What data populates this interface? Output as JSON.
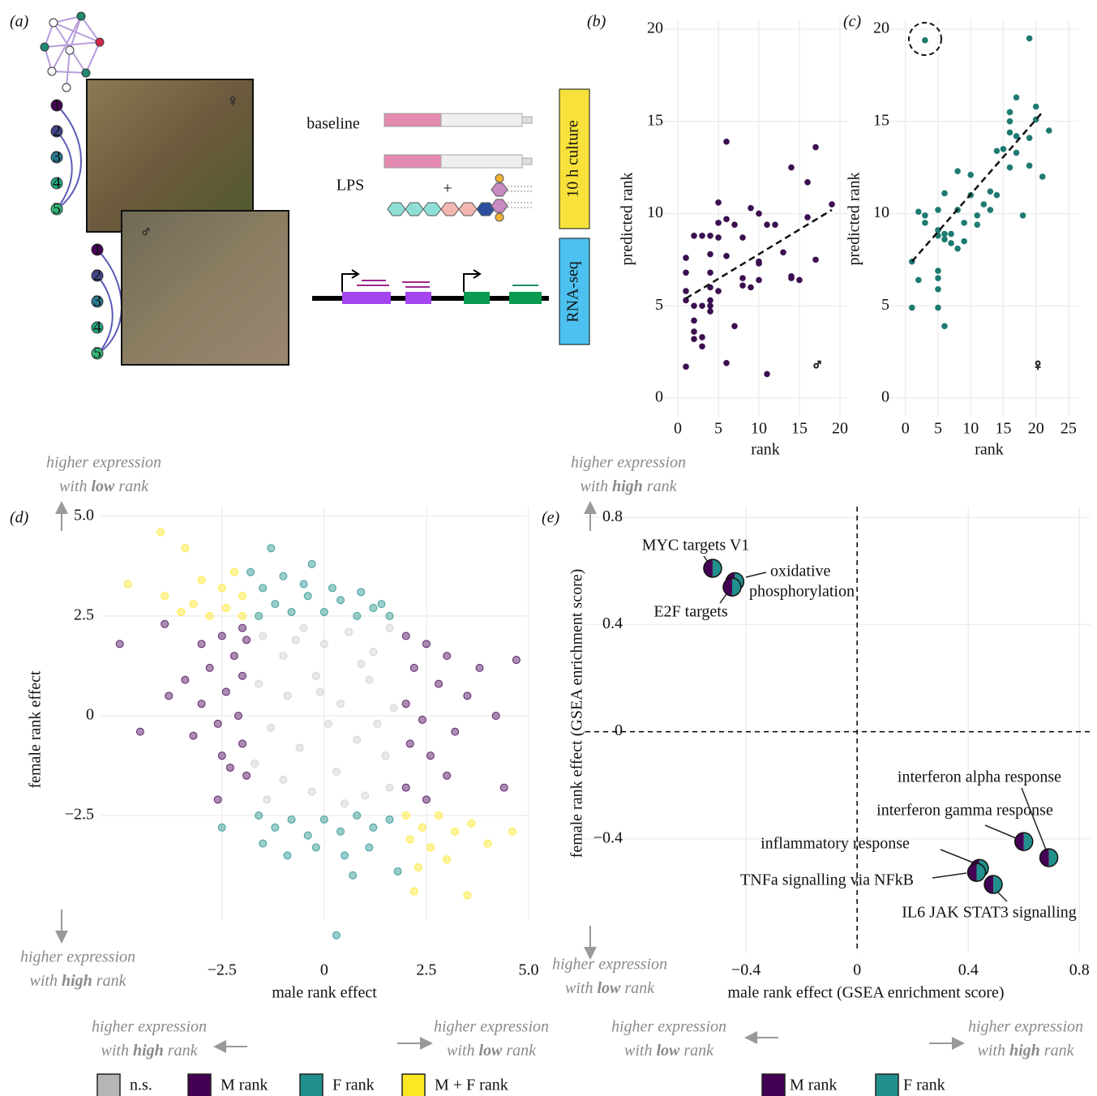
{
  "panel_a": {
    "panel": "(a)",
    "baseline": "baseline",
    "lps": "LPS",
    "plus": "+",
    "culture": "10 h culture",
    "rnaseq": "RNA-seq",
    "female_symbol": "♀",
    "male_symbol": "♂",
    "ranks": [
      1,
      2,
      3,
      4,
      5
    ]
  },
  "chart_data": [
    {
      "type": "scatter",
      "panel": "(b)",
      "xlabel": "rank",
      "ylabel": "predicted rank",
      "sex_symbol": "♂",
      "color": "#3b0f4f",
      "grid": true,
      "x": [
        1,
        1,
        1,
        1,
        1,
        2,
        2,
        2,
        2,
        2,
        3,
        3,
        3,
        3,
        4,
        4,
        4,
        4,
        4,
        4,
        4,
        5,
        5,
        5,
        5,
        6,
        6,
        6,
        6,
        7,
        7,
        8,
        8,
        8,
        9,
        9,
        10,
        10,
        10,
        10,
        11,
        11,
        12,
        13,
        14,
        14,
        14,
        15,
        16,
        16,
        17,
        17,
        19
      ],
      "y": [
        1.7,
        5.3,
        5.8,
        6.8,
        7.6,
        3.6,
        3.2,
        4.2,
        5,
        8.8,
        2.8,
        3.3,
        5,
        8.8,
        4.7,
        5,
        5.3,
        6,
        6.8,
        8.8,
        7.8,
        9.5,
        10.6,
        8.7,
        5.8,
        13.9,
        1.9,
        7.7,
        9.7,
        9.4,
        3.9,
        6.5,
        6.1,
        8.7,
        10.3,
        6,
        7.3,
        7.4,
        6.4,
        10,
        9.4,
        1.3,
        9.4,
        7.9,
        12.5,
        6.6,
        6.5,
        6.4,
        11.7,
        9.8,
        13.6,
        7.5,
        10.5
      ],
      "fit": {
        "x": [
          1,
          19
        ],
        "y": [
          5.4,
          10.2
        ]
      },
      "xlim": [
        -2.4,
        21
      ],
      "ylim": [
        -1,
        20.5
      ],
      "xticks": [
        0,
        5,
        10,
        15,
        20
      ],
      "yticks": [
        0,
        5,
        10,
        15,
        20
      ]
    },
    {
      "type": "scatter",
      "panel": "(c)",
      "xlabel": "rank",
      "ylabel": "predicted rank",
      "sex_symbol": "♀",
      "color": "#1f7a72",
      "grid": true,
      "x": [
        1,
        1,
        2,
        2,
        3,
        3,
        3,
        5,
        5,
        5,
        5,
        5,
        5,
        5,
        6,
        6,
        6,
        6,
        7,
        7,
        8,
        8,
        8,
        9,
        9,
        10,
        10,
        11,
        11,
        12,
        13,
        13,
        14,
        14,
        15,
        16,
        16,
        16,
        16,
        17,
        17,
        17,
        18,
        19,
        19,
        19,
        20,
        20,
        21,
        22
      ],
      "y": [
        4.9,
        7.4,
        10.1,
        6.4,
        9.9,
        19.4,
        9.5,
        10.2,
        9.1,
        8.8,
        6.9,
        6.5,
        5.9,
        4.9,
        3.9,
        11.1,
        8.6,
        8.9,
        8.4,
        8.9,
        12.3,
        10.2,
        8.1,
        9.5,
        8.5,
        12.1,
        11,
        9.9,
        9.4,
        10.5,
        11.2,
        10.2,
        11,
        13.4,
        13.5,
        12.5,
        15.5,
        15,
        14.4,
        16.3,
        14.2,
        13.3,
        9.9,
        19.5,
        14.1,
        12.6,
        15.1,
        15.8,
        12,
        14.5
      ],
      "fit": {
        "x": [
          1,
          21
        ],
        "y": [
          7.4,
          15.5
        ]
      },
      "xlim": [
        -2.7,
        26.5
      ],
      "ylim": [
        -1,
        20.5
      ],
      "xticks": [
        0,
        5,
        10,
        15,
        20,
        25
      ],
      "yticks": [
        0,
        5,
        10,
        15,
        20
      ]
    },
    {
      "type": "scatter",
      "panel": "(d)",
      "xlabel": "male rank effect",
      "ylabel": "female rank effect",
      "grid": true,
      "xlim": [
        -5.45,
        5.0
      ],
      "ylim": [
        -5.12,
        5.24
      ],
      "xticks": [
        {
          "value": -2.5,
          "label": "−2.5"
        },
        0,
        2.5,
        {
          "value": 5,
          "label": "5.0"
        }
      ],
      "yticks": [
        {
          "value": -2.5,
          "label": "−2.5"
        },
        0,
        2.5,
        {
          "value": 5,
          "label": "5.0"
        }
      ],
      "annotations": [
        {
          "line1": "higher expression",
          "line2": [
            "with ",
            "low",
            " rank"
          ]
        },
        {
          "line1": "higher expression",
          "line2": [
            "with ",
            "high",
            " rank"
          ]
        },
        {
          "line1": "higher expression",
          "line2": [
            "with ",
            "high",
            " rank"
          ]
        },
        {
          "line1": "higher expression",
          "line2": [
            "with ",
            "low",
            " rank"
          ]
        }
      ],
      "series": [
        {
          "name": "n.s.",
          "color": "#b5b5b5",
          "x": [
            -1.5,
            -1,
            -0.5,
            0,
            0.6,
            1.2,
            1.6,
            -1.6,
            -0.9,
            -0.2,
            0.4,
            1.1,
            1.7,
            -1.3,
            -0.6,
            0.1,
            0.8,
            1.5,
            -1.7,
            -1,
            -0.3,
            0.3,
            1,
            1.6,
            -1.4,
            0.5,
            -0.1,
            0.9,
            -0.7,
            1.3
          ],
          "y": [
            2,
            1.5,
            2.2,
            1.8,
            2.1,
            1.6,
            2.2,
            0.8,
            0.5,
            1,
            0.3,
            0.9,
            0.2,
            -0.3,
            -0.8,
            -0.2,
            -0.6,
            -1,
            -1.2,
            -1.6,
            -1.9,
            -1.4,
            -2,
            -1.8,
            -2.1,
            -2.2,
            0.6,
            1.3,
            1.9,
            -0.2
          ]
        },
        {
          "name": "M rank",
          "color": "#440154",
          "x": [
            -2,
            -2.5,
            -3,
            -2.2,
            -2.8,
            -3.4,
            -2,
            -2.4,
            -3,
            -3.8,
            -2.1,
            -2.6,
            -3.2,
            -2,
            -2.5,
            -1.9,
            -2.3,
            -2.6,
            -4.5,
            -5,
            -3.9,
            -1.9,
            2,
            2.5,
            3,
            2.2,
            2.8,
            3.5,
            2,
            2.4,
            3.2,
            4.2,
            2.1,
            2.6,
            3,
            2,
            2.5,
            4.4,
            3.8,
            4.7
          ],
          "y": [
            2.2,
            2,
            1.8,
            1.5,
            1.2,
            0.9,
            1,
            0.6,
            0.3,
            0.5,
            0,
            -0.2,
            -0.5,
            -0.7,
            -1,
            -1.5,
            -1.3,
            -2.1,
            -0.4,
            1.8,
            2.3,
            1.9,
            2,
            1.8,
            1.5,
            1.2,
            0.8,
            0.5,
            0.3,
            -0.1,
            -0.4,
            0,
            -0.7,
            -1,
            -1.5,
            -1.8,
            -2.1,
            -1.8,
            1.2,
            1.4
          ]
        },
        {
          "name": "F rank",
          "color": "#21908c",
          "x": [
            -1.6,
            -1.2,
            -0.8,
            -0.4,
            0,
            0.4,
            0.8,
            1.2,
            1.6,
            -1.5,
            -1,
            -0.5,
            0.2,
            0.9,
            -1.8,
            -1.3,
            -0.3,
            1.4,
            -1.6,
            -1.2,
            -0.8,
            -0.4,
            0,
            0.4,
            0.8,
            1.2,
            1.6,
            -1.5,
            -0.9,
            -0.2,
            0.5,
            1.1,
            1.8,
            -2.5,
            0.7,
            0.3
          ],
          "y": [
            2.5,
            2.8,
            2.6,
            3,
            2.6,
            2.9,
            2.5,
            2.7,
            2.5,
            3.2,
            3.5,
            3.3,
            3.2,
            3.1,
            3.6,
            4.2,
            3.8,
            2.8,
            -2.5,
            -2.8,
            -2.6,
            -3,
            -2.6,
            -2.9,
            -2.5,
            -2.8,
            -2.6,
            -3.2,
            -3.5,
            -3.3,
            -3.5,
            -3.3,
            -3.9,
            -2.8,
            -4,
            -5.5
          ]
        },
        {
          "name": "M + F rank",
          "color": "#fde725",
          "x": [
            -2,
            -2.4,
            -2.8,
            -3.2,
            -2,
            -2.5,
            -3,
            -3.5,
            -2.2,
            -3.9,
            -4.8,
            -4,
            -3.4,
            2,
            2.4,
            2.8,
            3.2,
            2.1,
            2.6,
            3,
            3.6,
            2.3,
            4,
            4.6,
            2.2,
            3.5
          ],
          "y": [
            2.5,
            2.7,
            2.5,
            2.8,
            3,
            3.2,
            3.4,
            2.6,
            3.6,
            3,
            3.3,
            4.6,
            4.2,
            -2.5,
            -2.8,
            -2.5,
            -2.9,
            -3.1,
            -3.3,
            -3.6,
            -2.7,
            -3.8,
            -3.2,
            -2.9,
            -4.4,
            -4.5
          ]
        }
      ]
    },
    {
      "type": "scatter",
      "panel": "(e)",
      "xlabel": "male rank effect (GSEA enrichment score)",
      "ylabel": "female rank effect (GSEA enrichment score)",
      "grid": true,
      "xlim": [
        -0.978,
        0.84
      ],
      "ylim": [
        -0.824,
        0.84
      ],
      "xticks": [
        {
          "value": -0.4,
          "label": "−0.4"
        },
        0,
        0.4,
        0.8
      ],
      "yticks": [
        {
          "value": -0.4,
          "label": "−0.4"
        },
        0,
        0.4,
        0.8
      ],
      "reference_lines": {
        "x": 0,
        "y": 0
      },
      "annotations": [
        {
          "line1": "higher expression",
          "line2": [
            "with ",
            "high",
            " rank"
          ]
        },
        {
          "line1": "higher expression",
          "line2": [
            "with ",
            "low",
            " rank"
          ]
        },
        {
          "line1": "higher expression",
          "line2": [
            "with ",
            "low",
            " rank"
          ]
        },
        {
          "line1": "higher expression",
          "line2": [
            "with ",
            "high",
            " rank"
          ]
        }
      ],
      "legend": [
        {
          "name": "M rank",
          "color": "#440154"
        },
        {
          "name": "F rank",
          "color": "#21908c"
        }
      ],
      "points": [
        {
          "label": [
            "MYC targets V1"
          ],
          "x": -0.52,
          "y": 0.61
        },
        {
          "label": [
            "oxidative",
            "phosphorylation"
          ],
          "x": -0.44,
          "y": 0.56
        },
        {
          "label": [
            "E2F targets"
          ],
          "x": -0.45,
          "y": 0.54
        },
        {
          "label": [
            "interferon alpha response"
          ],
          "x": 0.69,
          "y": -0.47
        },
        {
          "label": [
            "interferon gamma response"
          ],
          "x": 0.6,
          "y": -0.41
        },
        {
          "label": [
            "inflammatory response"
          ],
          "x": 0.44,
          "y": -0.51
        },
        {
          "label": [
            "TNFa signalling via NFkB"
          ],
          "x": 0.43,
          "y": -0.525
        },
        {
          "label": [
            "IL6 JAK STAT3 signalling"
          ],
          "x": 0.49,
          "y": -0.57
        }
      ]
    }
  ]
}
